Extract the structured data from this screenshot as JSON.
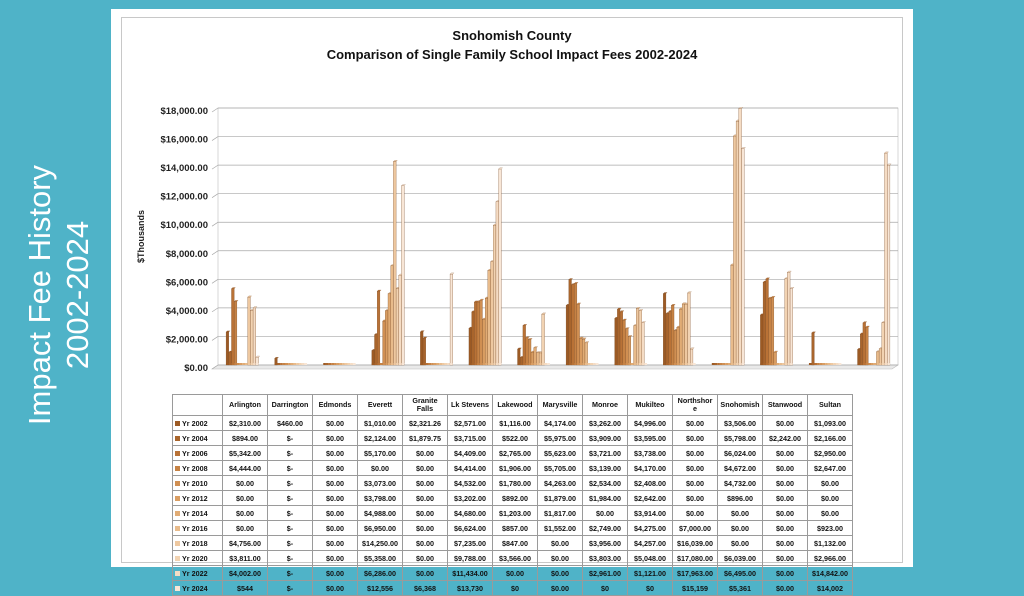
{
  "side_title": {
    "line1": "Impact Fee History",
    "line2": "2002-2024"
  },
  "chart_data": {
    "type": "bar",
    "title": "Snohomish County",
    "subtitle": "Comparison of Single Family School Impact Fees 2002-2024",
    "ylabel": "$Thousands",
    "ylim": [
      0,
      18000
    ],
    "yticks": [
      "$0.00",
      "$2,000.00",
      "$4,000.00",
      "$6,000.00",
      "$8,000.00",
      "$10,000.00",
      "$12,000.00",
      "$14,000.00",
      "$16,000.00",
      "$18,000.00"
    ],
    "grid": true,
    "categories": [
      "Arlington",
      "Darrington",
      "Edmonds",
      "Everett",
      "Granite Falls",
      "Lk Stevens",
      "Lakewood",
      "Marysville",
      "Monroe",
      "Mukilteo",
      "Northshore",
      "Snohomish",
      "Stanwood",
      "Sultan"
    ],
    "category_labels": [
      [
        "Arlington"
      ],
      [
        "Darrington"
      ],
      [
        "Edmonds"
      ],
      [
        "Everett"
      ],
      [
        "Granite",
        "Falls"
      ],
      [
        "Lk Stevens"
      ],
      [
        "Lakewood"
      ],
      [
        "Marysville"
      ],
      [
        "Monroe"
      ],
      [
        "Mukilteo"
      ],
      [
        "Northshor",
        "e"
      ],
      [
        "Snohomish"
      ],
      [
        "Stanwood"
      ],
      [
        "Sultan"
      ]
    ],
    "series": [
      {
        "name": "Yr 2002",
        "color": "#9c5a24",
        "values": [
          2310,
          460,
          0,
          1010,
          2321.26,
          2571,
          1116,
          4174,
          3262,
          4996,
          0,
          3506,
          0,
          1093
        ],
        "labels": [
          "$2,310.00",
          "$460.00",
          "$0.00",
          "$1,010.00",
          "$2,321.26",
          "$2,571.00",
          "$1,116.00",
          "$4,174.00",
          "$3,262.00",
          "$4,996.00",
          "$0.00",
          "$3,506.00",
          "$0.00",
          "$1,093.00"
        ]
      },
      {
        "name": "Yr 2004",
        "color": "#a9652c",
        "values": [
          894,
          0,
          0,
          2124,
          1879.75,
          3715,
          522,
          5975,
          3909,
          3595,
          0,
          5798,
          2242,
          2166
        ],
        "labels": [
          "$894.00",
          "$-",
          "$0.00",
          "$2,124.00",
          "$1,879.75",
          "$3,715.00",
          "$522.00",
          "$5,975.00",
          "$3,909.00",
          "$3,595.00",
          "$0.00",
          "$5,798.00",
          "$2,242.00",
          "$2,166.00"
        ]
      },
      {
        "name": "Yr 2006",
        "color": "#b97236",
        "values": [
          5342,
          0,
          0,
          5170,
          0,
          4409,
          2765,
          5623,
          3721,
          3738,
          0,
          6024,
          0,
          2950
        ],
        "labels": [
          "$5,342.00",
          "$-",
          "$0.00",
          "$5,170.00",
          "$0.00",
          "$4,409.00",
          "$2,765.00",
          "$5,623.00",
          "$3,721.00",
          "$3,738.00",
          "$0.00",
          "$6,024.00",
          "$0.00",
          "$2,950.00"
        ]
      },
      {
        "name": "Yr 2008",
        "color": "#c68244",
        "values": [
          4444,
          0,
          0,
          0,
          0,
          4414,
          1906,
          5705,
          3139,
          4170,
          0,
          4672,
          0,
          2647
        ],
        "labels": [
          "$4,444.00",
          "$-",
          "$0.00",
          "$0.00",
          "$0.00",
          "$4,414.00",
          "$1,906.00",
          "$5,705.00",
          "$3,139.00",
          "$4,170.00",
          "$0.00",
          "$4,672.00",
          "$0.00",
          "$2,647.00"
        ]
      },
      {
        "name": "Yr 2010",
        "color": "#d08f52",
        "values": [
          0,
          0,
          0,
          3073,
          0,
          4532,
          1780,
          4263,
          2534,
          2408,
          0,
          4732,
          0,
          0
        ],
        "labels": [
          "$0.00",
          "$-",
          "$0.00",
          "$3,073.00",
          "$0.00",
          "$4,532.00",
          "$1,780.00",
          "$4,263.00",
          "$2,534.00",
          "$2,408.00",
          "$0.00",
          "$4,732.00",
          "$0.00",
          "$0.00"
        ]
      },
      {
        "name": "Yr 2012",
        "color": "#d99d62",
        "values": [
          0,
          0,
          0,
          3798,
          0,
          3202,
          892,
          1879,
          1984,
          2642,
          0,
          896,
          0,
          0
        ],
        "labels": [
          "$0.00",
          "$-",
          "$0.00",
          "$3,798.00",
          "$0.00",
          "$3,202.00",
          "$892.00",
          "$1,879.00",
          "$1,984.00",
          "$2,642.00",
          "$0.00",
          "$896.00",
          "$0.00",
          "$0.00"
        ]
      },
      {
        "name": "Yr 2014",
        "color": "#e1ac75",
        "values": [
          0,
          0,
          0,
          4988,
          0,
          4680,
          1203,
          1817,
          0,
          3914,
          0,
          0,
          0,
          0
        ],
        "labels": [
          "$0.00",
          "$-",
          "$0.00",
          "$4,988.00",
          "$0.00",
          "$4,680.00",
          "$1,203.00",
          "$1,817.00",
          "$0.00",
          "$3,914.00",
          "$0.00",
          "$0.00",
          "$0.00",
          "$0.00"
        ]
      },
      {
        "name": "Yr 2016",
        "color": "#e8bb8b",
        "values": [
          0,
          0,
          0,
          6950,
          0,
          6624,
          857,
          1552,
          2749,
          4275,
          7000,
          0,
          0,
          923
        ],
        "labels": [
          "$0.00",
          "$-",
          "$0.00",
          "$6,950.00",
          "$0.00",
          "$6,624.00",
          "$857.00",
          "$1,552.00",
          "$2,749.00",
          "$4,275.00",
          "$7,000.00",
          "$0.00",
          "$0.00",
          "$923.00"
        ]
      },
      {
        "name": "Yr 2018",
        "color": "#eec8a0",
        "values": [
          4756,
          0,
          0,
          14250,
          0,
          7235,
          847,
          0,
          3956,
          4257,
          16039,
          0,
          0,
          1132
        ],
        "labels": [
          "$4,756.00",
          "$-",
          "$0.00",
          "$14,250.00",
          "$0.00",
          "$7,235.00",
          "$847.00",
          "$0.00",
          "$3,956.00",
          "$4,257.00",
          "$16,039.00",
          "$0.00",
          "$0.00",
          "$1,132.00"
        ]
      },
      {
        "name": "Yr 2020",
        "color": "#f2d3b2",
        "values": [
          3811,
          0,
          0,
          5358,
          0,
          9788,
          3566,
          0,
          3803,
          5048,
          17080,
          6039,
          0,
          2966
        ],
        "labels": [
          "$3,811.00",
          "$-",
          "$0.00",
          "$5,358.00",
          "$0.00",
          "$9,788.00",
          "$3,566.00",
          "$0.00",
          "$3,803.00",
          "$5,048.00",
          "$17,080.00",
          "$6,039.00",
          "$0.00",
          "$2,966.00"
        ]
      },
      {
        "name": "Yr 2022",
        "color": "#f5dcc4",
        "values": [
          4002,
          0,
          0,
          6286,
          0,
          11434,
          0,
          0,
          2961,
          1121,
          17963,
          6495,
          0,
          14842
        ],
        "labels": [
          "$4,002.00",
          "$-",
          "$0.00",
          "$6,286.00",
          "$0.00",
          "$11,434.00",
          "$0.00",
          "$0.00",
          "$2,961.00",
          "$1,121.00",
          "$17,963.00",
          "$6,495.00",
          "$0.00",
          "$14,842.00"
        ]
      },
      {
        "name": "Yr 2024",
        "color": "#f8e6d6",
        "values": [
          544,
          0,
          0,
          12556,
          6368,
          13730,
          0,
          0,
          0,
          0,
          15159,
          5361,
          0,
          14002
        ],
        "labels": [
          "$544",
          "$-",
          "$0.00",
          "$12,556",
          "$6,368",
          "$13,730",
          "$0",
          "$0.00",
          "$0",
          "$0",
          "$15,159",
          "$5,361",
          "$0.00",
          "$14,002"
        ]
      }
    ]
  }
}
